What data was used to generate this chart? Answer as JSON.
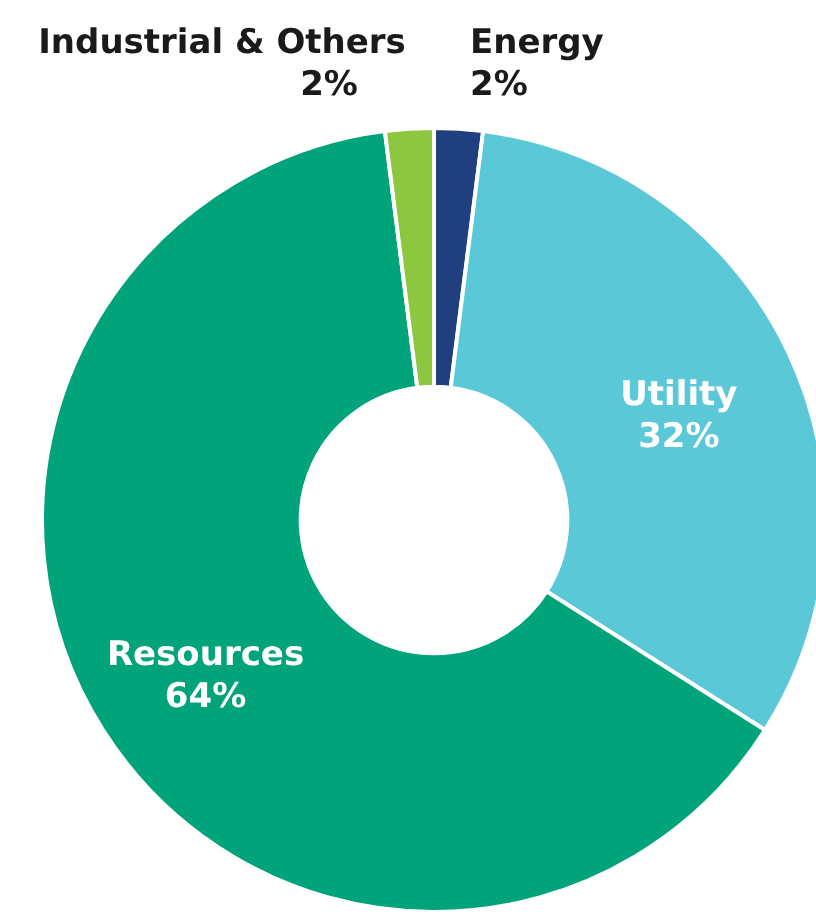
{
  "chart_data": {
    "type": "donut",
    "categories": [
      "Energy",
      "Utility",
      "Resources",
      "Industrial & Others"
    ],
    "values": [
      2,
      32,
      64,
      2
    ],
    "value_labels": [
      "2%",
      "32%",
      "64%",
      "2%"
    ],
    "colors": [
      "#1f3f7f",
      "#5bc8d8",
      "#00a37a",
      "#8dc63f"
    ],
    "legend": false
  }
}
